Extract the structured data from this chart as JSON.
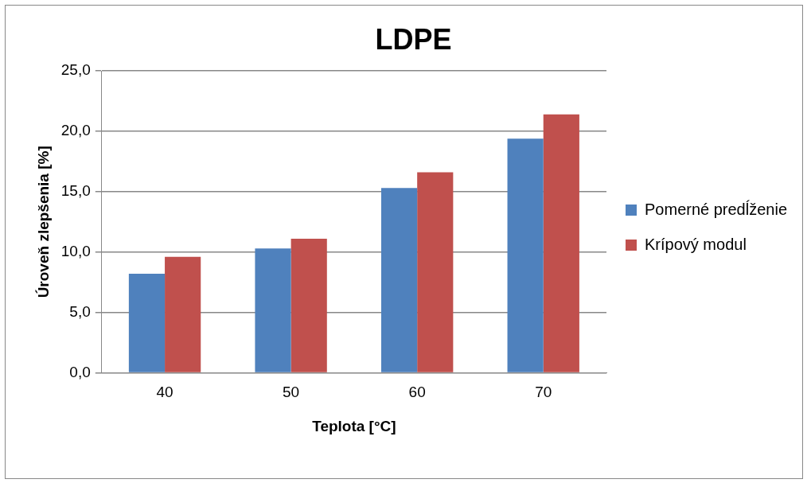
{
  "chart_data": {
    "type": "bar",
    "title": "LDPE",
    "xlabel": "Teplota [°C]",
    "ylabel": "Úroveň zlepšenia [%]",
    "categories": [
      "40",
      "50",
      "60",
      "70"
    ],
    "series": [
      {
        "name": "Pomerné predĺženie",
        "color": "#4f81bd",
        "values": [
          8.2,
          10.3,
          15.3,
          19.4
        ]
      },
      {
        "name": "Krípový modul",
        "color": "#c0504d",
        "values": [
          9.6,
          11.1,
          16.6,
          21.4
        ]
      }
    ],
    "ylim": [
      0,
      25
    ],
    "yticks": [
      {
        "value": 0,
        "label": "0,0"
      },
      {
        "value": 5,
        "label": "5,0"
      },
      {
        "value": 10,
        "label": "10,0"
      },
      {
        "value": 15,
        "label": "15,0"
      },
      {
        "value": 20,
        "label": "20,0"
      },
      {
        "value": 25,
        "label": "25,0"
      }
    ],
    "grid": "y",
    "legend": "right"
  }
}
